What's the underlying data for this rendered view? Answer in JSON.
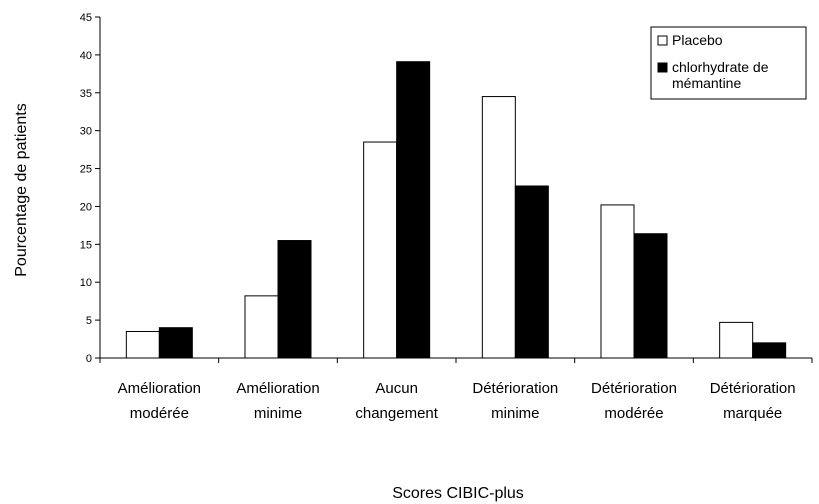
{
  "chart_data": {
    "type": "bar",
    "categories": [
      [
        "Amélioration",
        "modérée"
      ],
      [
        "Amélioration",
        "minime"
      ],
      [
        "Aucun",
        "changement"
      ],
      [
        "Détérioration",
        "minime"
      ],
      [
        "Détérioration",
        "modérée"
      ],
      [
        "Détérioration",
        "marquée"
      ]
    ],
    "series": [
      {
        "name": "Placebo",
        "fill": "#ffffff",
        "values": [
          3.5,
          8.2,
          28.5,
          34.5,
          20.2,
          4.7
        ]
      },
      {
        "name": "chlorhydrate de mémantine",
        "name_lines": [
          "chlorhydrate de",
          "mémantine"
        ],
        "fill": "#000000",
        "values": [
          4.0,
          15.5,
          39.1,
          22.7,
          16.4,
          2.0
        ]
      }
    ],
    "title": "",
    "xlabel": "Scores CIBIC-plus",
    "ylabel": "Pourcentage de patients",
    "ylim": [
      0,
      45
    ],
    "yticks": [
      0,
      5,
      10,
      15,
      20,
      25,
      30,
      35,
      40,
      45
    ],
    "grid": false,
    "legend_position": "top-right"
  }
}
